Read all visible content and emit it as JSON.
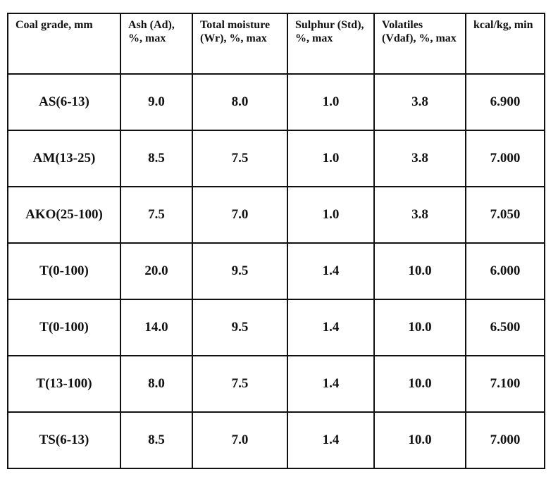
{
  "table": {
    "header": [
      "Coal grade, mm",
      "Ash (Ad), %, max",
      "Total moisture (Wr), %, max",
      "Sulphur (Std), %, max",
      "Volatiles (Vdaf), %, max",
      "kcal/kg, min"
    ],
    "rows": [
      [
        "AS(6-13)",
        "9.0",
        "8.0",
        "1.0",
        "3.8",
        "6.900"
      ],
      [
        "AM(13-25)",
        "8.5",
        "7.5",
        "1.0",
        "3.8",
        "7.000"
      ],
      [
        "AKO(25-100)",
        "7.5",
        "7.0",
        "1.0",
        "3.8",
        "7.050"
      ],
      [
        "T(0-100)",
        "20.0",
        "9.5",
        "1.4",
        "10.0",
        "6.000"
      ],
      [
        "T(0-100)",
        "14.0",
        "9.5",
        "1.4",
        "10.0",
        "6.500"
      ],
      [
        "T(13-100)",
        "8.0",
        "7.5",
        "1.4",
        "10.0",
        "7.100"
      ],
      [
        "TS(6-13)",
        "8.5",
        "7.0",
        "1.4",
        "10.0",
        "7.000"
      ]
    ]
  }
}
